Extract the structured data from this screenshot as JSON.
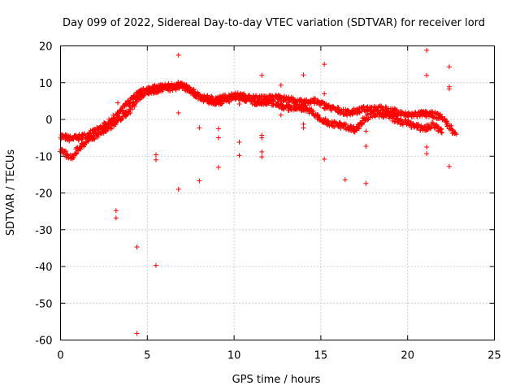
{
  "chart_data": {
    "type": "scatter",
    "title": "Day 099 of 2022, Sidereal Day-to-day VTEC variation (SDTVAR) for receiver lord",
    "xlabel": "GPS time / hours",
    "ylabel": "SDTVAR / TECUs",
    "xlim": [
      0,
      25
    ],
    "ylim": [
      -60,
      20
    ],
    "xticks": [
      0,
      5,
      10,
      15,
      20,
      25
    ],
    "yticks": [
      -60,
      -50,
      -40,
      -30,
      -20,
      -10,
      0,
      10,
      20
    ],
    "grid": true,
    "marker": "+",
    "color": "#ff0000",
    "bands": [
      {
        "name": "upper",
        "x": [
          0.0,
          0.5,
          1.0,
          1.5,
          2.0,
          2.5,
          3.0,
          3.5,
          4.0,
          4.5,
          5.0,
          5.5,
          6.0,
          6.5,
          7.0,
          7.5,
          8.0,
          8.5,
          9.0,
          9.5,
          10.0,
          10.5,
          11.0,
          11.5,
          12.0,
          12.5,
          13.0,
          13.5,
          14.0,
          14.5,
          15.0,
          15.5,
          16.0,
          16.5,
          17.0,
          17.5,
          18.0,
          18.5,
          19.0,
          19.5,
          20.0,
          20.5,
          21.0,
          21.5,
          22.0,
          22.5,
          22.8
        ],
        "y": [
          -4.5,
          -5.2,
          -5.0,
          -4.3,
          -3.2,
          -1.8,
          0.0,
          2.5,
          5.0,
          7.0,
          8.2,
          8.6,
          9.0,
          9.2,
          9.4,
          8.0,
          6.0,
          5.7,
          5.5,
          6.0,
          6.6,
          6.3,
          5.8,
          5.7,
          5.8,
          6.0,
          5.6,
          5.0,
          4.5,
          5.2,
          4.3,
          3.2,
          2.5,
          1.8,
          2.2,
          2.8,
          3.2,
          2.9,
          2.4,
          1.8,
          1.2,
          1.4,
          1.5,
          1.3,
          0.5,
          -2.5,
          -3.8
        ]
      },
      {
        "name": "lower",
        "x": [
          0.0,
          0.3,
          0.6,
          1.0,
          1.5,
          2.0,
          2.5,
          3.0,
          3.5,
          4.0,
          4.5,
          5.0,
          5.5,
          6.0,
          6.5,
          7.0,
          8.5,
          9.0,
          9.5,
          10.0,
          10.5,
          11.0,
          11.5,
          12.0,
          12.5,
          13.0,
          13.5,
          14.0,
          14.5,
          15.0,
          15.5,
          16.0,
          16.5,
          17.0,
          17.5,
          18.0,
          18.5,
          19.0,
          19.5,
          20.0,
          20.5,
          21.0,
          21.5,
          22.0
        ],
        "y": [
          -8.5,
          -9.5,
          -10.8,
          -8.0,
          -6.0,
          -4.5,
          -3.0,
          -1.5,
          0.5,
          2.5,
          6.0,
          7.6,
          8.0,
          8.3,
          8.7,
          9.0,
          5.0,
          4.8,
          5.0,
          6.0,
          6.0,
          5.0,
          4.2,
          4.8,
          4.2,
          3.2,
          3.2,
          3.2,
          2.0,
          -0.2,
          -1.0,
          -1.5,
          -2.0,
          -2.7,
          0.0,
          1.5,
          1.5,
          0.8,
          -0.5,
          -1.0,
          -2.0,
          -2.5,
          -1.5,
          -3.5
        ]
      }
    ],
    "outliers": [
      {
        "x": 3.2,
        "y": -24.8
      },
      {
        "x": 3.2,
        "y": -26.8
      },
      {
        "x": 3.3,
        "y": 4.5
      },
      {
        "x": 4.4,
        "y": -34.7
      },
      {
        "x": 4.4,
        "y": -58.2
      },
      {
        "x": 5.5,
        "y": -39.7
      },
      {
        "x": 5.5,
        "y": -9.6
      },
      {
        "x": 5.5,
        "y": -11.0
      },
      {
        "x": 6.8,
        "y": 17.5
      },
      {
        "x": 6.8,
        "y": 1.8
      },
      {
        "x": 6.8,
        "y": -19.0
      },
      {
        "x": 8.0,
        "y": -2.3
      },
      {
        "x": 8.0,
        "y": -16.7
      },
      {
        "x": 9.1,
        "y": -2.5
      },
      {
        "x": 9.1,
        "y": -5.0
      },
      {
        "x": 9.1,
        "y": -13.0
      },
      {
        "x": 10.3,
        "y": -6.2
      },
      {
        "x": 10.3,
        "y": -9.8
      },
      {
        "x": 10.3,
        "y": 4.2
      },
      {
        "x": 11.6,
        "y": 12.0
      },
      {
        "x": 11.6,
        "y": -4.3
      },
      {
        "x": 11.6,
        "y": -5.0
      },
      {
        "x": 11.6,
        "y": -8.8
      },
      {
        "x": 11.6,
        "y": -10.2
      },
      {
        "x": 12.7,
        "y": 9.3
      },
      {
        "x": 12.7,
        "y": 1.2
      },
      {
        "x": 14.0,
        "y": 12.1
      },
      {
        "x": 14.0,
        "y": -1.3
      },
      {
        "x": 14.0,
        "y": -2.3
      },
      {
        "x": 15.2,
        "y": 15.0
      },
      {
        "x": 15.2,
        "y": 7.0
      },
      {
        "x": 15.2,
        "y": -10.8
      },
      {
        "x": 16.4,
        "y": -16.4
      },
      {
        "x": 17.6,
        "y": -7.3
      },
      {
        "x": 17.6,
        "y": -17.4
      },
      {
        "x": 17.6,
        "y": -3.2
      },
      {
        "x": 21.1,
        "y": 18.8
      },
      {
        "x": 21.1,
        "y": 12.0
      },
      {
        "x": 21.1,
        "y": -7.5
      },
      {
        "x": 21.1,
        "y": -9.3
      },
      {
        "x": 22.4,
        "y": 14.3
      },
      {
        "x": 22.4,
        "y": 8.9
      },
      {
        "x": 22.4,
        "y": 8.3
      },
      {
        "x": 22.4,
        "y": -12.8
      }
    ]
  }
}
